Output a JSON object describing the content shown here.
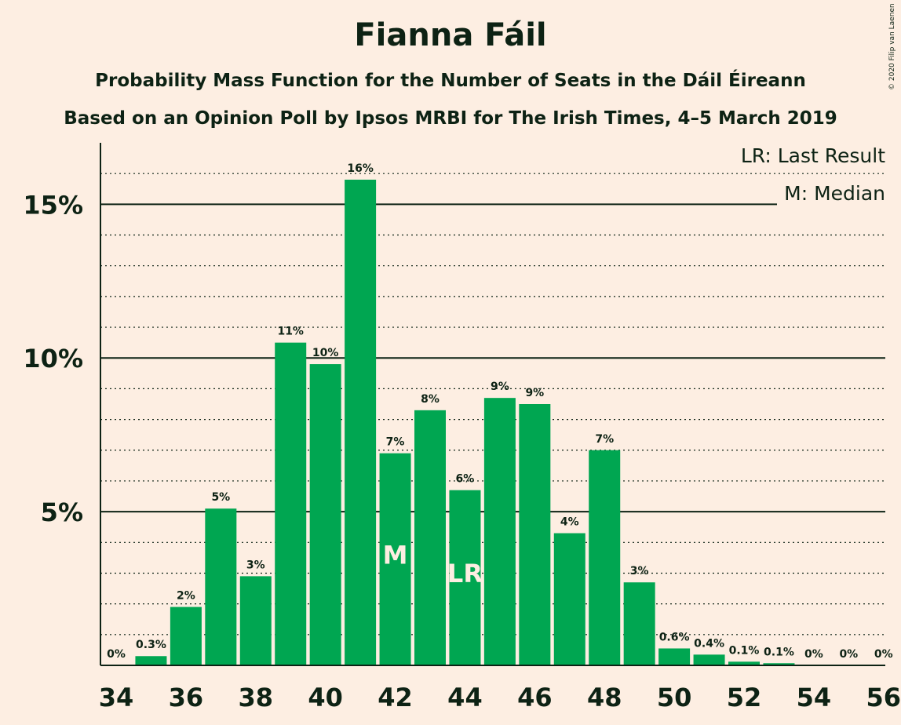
{
  "title": "Fianna Fáil",
  "subtitle_1": "Probability Mass Function for the Number of Seats in the Dáil Éireann",
  "subtitle_2": "Based on an Opinion Poll by Ipsos MRBI for The Irish Times, 4–5 March 2019",
  "copyright": "© 2020 Filip van Laenen",
  "legend": {
    "last_result": "LR: Last Result",
    "median": "M: Median"
  },
  "colors": {
    "background": "#FDEEE2",
    "bar": "#00A651",
    "text": "#0D2214"
  },
  "chart_data": {
    "type": "bar",
    "title": "Fianna Fáil",
    "xlabel": "",
    "ylabel": "",
    "ylim": [
      0,
      17
    ],
    "grid": true,
    "x": [
      34,
      35,
      36,
      37,
      38,
      39,
      40,
      41,
      42,
      43,
      44,
      45,
      46,
      47,
      48,
      49,
      50,
      51,
      52,
      53,
      54,
      55,
      56
    ],
    "values": [
      0,
      0.3,
      1.9,
      5.1,
      2.9,
      10.5,
      9.8,
      15.8,
      6.9,
      8.3,
      5.7,
      8.7,
      8.5,
      4.3,
      7.0,
      2.7,
      0.55,
      0.35,
      0.12,
      0.07,
      0,
      0,
      0
    ],
    "labels": [
      "0%",
      "0.3%",
      "2%",
      "5%",
      "3%",
      "11%",
      "10%",
      "16%",
      "7%",
      "8%",
      "6%",
      "9%",
      "9%",
      "4%",
      "7%",
      "3%",
      "0.6%",
      "0.4%",
      "0.1%",
      "0.1%",
      "0%",
      "0%",
      "0%"
    ],
    "x_tick_labels": [
      "34",
      "36",
      "38",
      "40",
      "42",
      "44",
      "46",
      "48",
      "50",
      "52",
      "54",
      "56"
    ],
    "y_ticks": [
      {
        "value": 5,
        "label": "5%"
      },
      {
        "value": 10,
        "label": "10%"
      },
      {
        "value": 15,
        "label": "15%"
      }
    ],
    "markers": [
      {
        "x": 42,
        "text": "M"
      },
      {
        "x": 44,
        "text": "LR"
      }
    ],
    "legend_position": "top-right"
  }
}
